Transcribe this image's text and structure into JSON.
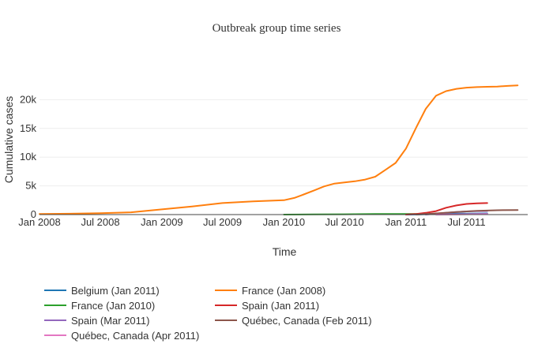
{
  "chart_data": {
    "type": "line",
    "title": "Outbreak group time series",
    "xlabel": "Time",
    "ylabel": "Cumulative cases",
    "xlim": [
      "2008-01-01",
      "2011-12-31"
    ],
    "ylim": [
      0,
      25000
    ],
    "grid": true,
    "legend_position": "bottom",
    "x_ticks": [
      {
        "label": "Jan 2008",
        "date": "2008-01-01"
      },
      {
        "label": "Jul 2008",
        "date": "2008-07-01"
      },
      {
        "label": "Jan 2009",
        "date": "2009-01-01"
      },
      {
        "label": "Jul 2009",
        "date": "2009-07-01"
      },
      {
        "label": "Jan 2010",
        "date": "2010-01-01"
      },
      {
        "label": "Jul 2010",
        "date": "2010-07-01"
      },
      {
        "label": "Jan 2011",
        "date": "2011-01-01"
      },
      {
        "label": "Jul 2011",
        "date": "2011-07-01"
      }
    ],
    "y_ticks": [
      {
        "label": "0",
        "value": 0
      },
      {
        "label": "5k",
        "value": 5000
      },
      {
        "label": "10k",
        "value": 10000
      },
      {
        "label": "15k",
        "value": 15000
      },
      {
        "label": "20k",
        "value": 20000
      }
    ],
    "series": [
      {
        "name": "Belgium (Jan 2011)",
        "color": "#1f77b4",
        "x": [
          "2011-01-01",
          "2011-02-01",
          "2011-03-01",
          "2011-04-01",
          "2011-05-01",
          "2011-06-01",
          "2011-07-01",
          "2011-08-01",
          "2011-09-01"
        ],
        "y": [
          0,
          20,
          50,
          90,
          130,
          160,
          180,
          190,
          200
        ]
      },
      {
        "name": "France (Jan 2008)",
        "color": "#ff7f0e",
        "x": [
          "2008-01-01",
          "2008-04-01",
          "2008-07-01",
          "2008-10-01",
          "2009-01-01",
          "2009-04-01",
          "2009-07-01",
          "2009-10-01",
          "2010-01-01",
          "2010-02-01",
          "2010-03-01",
          "2010-04-01",
          "2010-05-01",
          "2010-06-01",
          "2010-07-01",
          "2010-08-01",
          "2010-09-01",
          "2010-10-01",
          "2010-11-01",
          "2010-12-01",
          "2011-01-01",
          "2011-02-01",
          "2011-03-01",
          "2011-04-01",
          "2011-05-01",
          "2011-06-01",
          "2011-07-01",
          "2011-08-01",
          "2011-09-01",
          "2011-10-01",
          "2011-11-01",
          "2011-12-01"
        ],
        "y": [
          100,
          150,
          250,
          400,
          900,
          1400,
          2000,
          2300,
          2500,
          2900,
          3500,
          4200,
          4900,
          5400,
          5600,
          5800,
          6100,
          6600,
          7800,
          9000,
          11500,
          15200,
          18400,
          20700,
          21500,
          21900,
          22100,
          22200,
          22250,
          22300,
          22400,
          22500
        ]
      },
      {
        "name": "France (Jan 2010)",
        "color": "#2ca02c",
        "x": [
          "2010-01-01",
          "2010-04-01",
          "2010-07-01",
          "2010-10-01",
          "2011-01-01",
          "2011-03-01"
        ],
        "y": [
          0,
          30,
          60,
          90,
          110,
          130
        ]
      },
      {
        "name": "Spain (Jan 2011)",
        "color": "#d62728",
        "x": [
          "2011-01-01",
          "2011-02-01",
          "2011-03-01",
          "2011-04-01",
          "2011-05-01",
          "2011-06-01",
          "2011-07-01",
          "2011-08-01",
          "2011-09-01"
        ],
        "y": [
          0,
          100,
          300,
          600,
          1200,
          1600,
          1850,
          1950,
          2000
        ]
      },
      {
        "name": "Spain (Mar 2011)",
        "color": "#9467bd",
        "x": [
          "2011-03-01",
          "2011-04-01",
          "2011-05-01",
          "2011-06-01",
          "2011-07-01",
          "2011-08-01",
          "2011-09-01"
        ],
        "y": [
          0,
          150,
          300,
          450,
          550,
          600,
          620
        ]
      },
      {
        "name": "Québec, Canada (Feb 2011)",
        "color": "#8c564b",
        "x": [
          "2011-02-01",
          "2011-04-01",
          "2011-06-01",
          "2011-08-01",
          "2011-10-01",
          "2011-12-01"
        ],
        "y": [
          0,
          200,
          450,
          650,
          750,
          800
        ]
      },
      {
        "name": "Québec, Canada (Apr 2011)",
        "color": "#e377c2",
        "x": [
          "2011-04-01",
          "2011-06-01",
          "2011-08-01",
          "2011-09-01"
        ],
        "y": [
          0,
          40,
          80,
          100
        ]
      }
    ]
  }
}
